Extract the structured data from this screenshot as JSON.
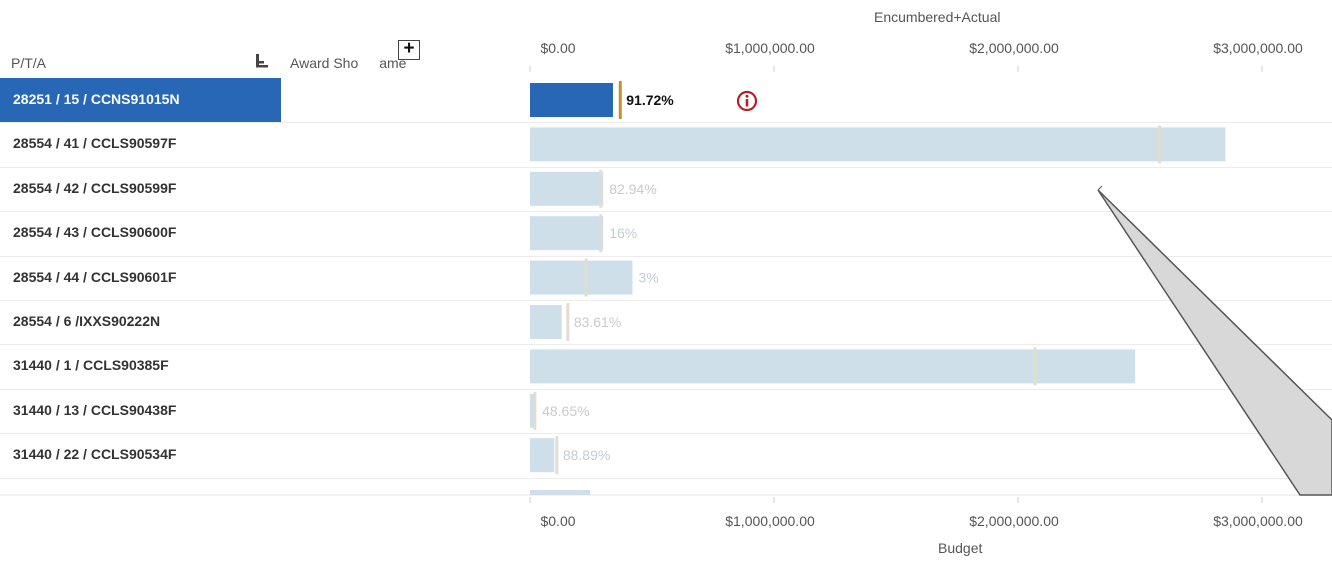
{
  "header": {
    "col_pta": "P/T/A",
    "col_award_name": "Award Sho",
    "col_award_name_tail": "ame",
    "expand_symbol": "+",
    "sort_icon": "sort-bars-icon"
  },
  "chart_data": {
    "type": "bar",
    "top_axis_title": "Encumbered+Actual",
    "bottom_axis_title": "Budget",
    "ticks": [
      "$0.00",
      "$1,000,000.00",
      "$2,000,000.00",
      "$3,000,000.00"
    ],
    "tick_values": [
      0,
      1000000,
      2000000,
      3000000
    ],
    "xlim": [
      0,
      3200000
    ],
    "categories": [
      "28251 / 15 / CCNS91015N",
      "28554 / 41 / CCLS90597F",
      "28554 / 42 / CCLS90599F",
      "28554 / 43 / CCLS90600F",
      "28554 / 44 / CCLS90601F",
      "28554 / 6 /IXXS90222N",
      "31440 / 1 / CCLS90385F",
      "31440 / 13 / CCLS90438F",
      "31440 / 22 / CCLS90534F"
    ],
    "encumbered_actual": [
      340000,
      2850000,
      300000,
      300000,
      420000,
      130000,
      2480000,
      25000,
      100000
    ],
    "budget": [
      370000,
      2580000,
      290000,
      290000,
      230000,
      155000,
      2070000,
      20000,
      110000
    ],
    "percent_labels": [
      "91.72%",
      "",
      "82.94%",
      "16%",
      "3%",
      "83.61%",
      "",
      "48.65%",
      "88.89%"
    ],
    "selected_index": 0,
    "alert_icon": "alert-circle-icon",
    "colors": {
      "selected_bar": "#2767b6",
      "bar": "#cfdfea",
      "budget_marker_selected": "#c8902c",
      "budget_marker": "#e2ddd2",
      "percent_selected": "#111111",
      "percent": "#c4ccd3",
      "alert": "#b5202a"
    }
  }
}
